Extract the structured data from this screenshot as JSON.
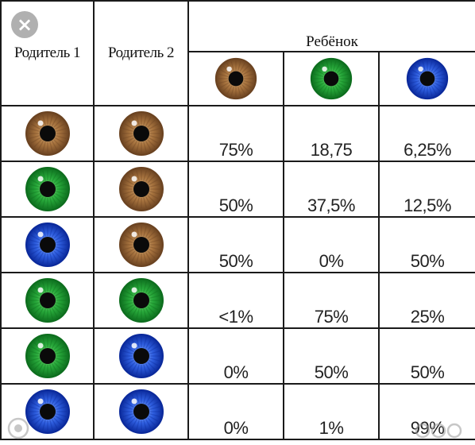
{
  "table": {
    "header": {
      "parent1": "Родитель 1",
      "parent2": "Родитель 2",
      "child": "Ребёнок",
      "child_columns": [
        {
          "eye": "brown-eye-icon"
        },
        {
          "eye": "green-eye-icon"
        },
        {
          "eye": "blue-eye-icon"
        }
      ]
    },
    "rows": [
      {
        "parent1": "brown",
        "parent2": "brown",
        "values": [
          "75%",
          "18,75",
          "6,25%"
        ]
      },
      {
        "parent1": "green",
        "parent2": "brown",
        "values": [
          "50%",
          "37,5%",
          "12,5%"
        ]
      },
      {
        "parent1": "blue",
        "parent2": "brown",
        "values": [
          "50%",
          "0%",
          "50%"
        ]
      },
      {
        "parent1": "green",
        "parent2": "green",
        "values": [
          "<1%",
          "75%",
          "25%"
        ]
      },
      {
        "parent1": "green",
        "parent2": "blue",
        "values": [
          "0%",
          "50%",
          "50%"
        ]
      },
      {
        "parent1": "blue",
        "parent2": "blue",
        "values": [
          "0%",
          "1%",
          "99%"
        ]
      }
    ]
  },
  "colors": {
    "brown": {
      "outer": "#6b4321",
      "mid": "#a8743f",
      "light": "#d8b07a"
    },
    "green": {
      "outer": "#0d6e1e",
      "mid": "#27a83a",
      "light": "#7fe07a"
    },
    "blue": {
      "outer": "#0b2a9c",
      "mid": "#2f5fe0",
      "light": "#8fb4ff"
    },
    "grid_line": "#1a1a1a",
    "close_badge": "#969696"
  },
  "overlay": {
    "close_symbol": "×"
  }
}
